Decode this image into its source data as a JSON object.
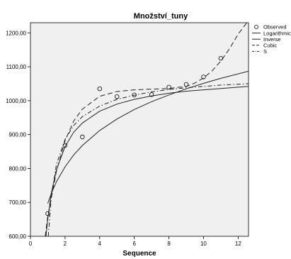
{
  "chart_data": {
    "type": "line",
    "title": "Množství_tuny",
    "xlabel": "Sequence",
    "ylabel": "",
    "xlim": [
      0,
      12.6
    ],
    "ylim": [
      600,
      1230
    ],
    "x_ticks": [
      0,
      2,
      4,
      6,
      8,
      10,
      12
    ],
    "x_tick_labels": [
      "0",
      "2",
      "4",
      "6",
      "8",
      "10",
      "12"
    ],
    "y_ticks": [
      600,
      700,
      800,
      900,
      1000,
      1100,
      1200
    ],
    "y_tick_labels": [
      "600,00",
      "700,00",
      "800,00",
      "900,00",
      "1000,00",
      "1100,00",
      "1200,00"
    ],
    "grid": false,
    "legend_position": "right",
    "plot_background": "#f0f0f0",
    "legend": [
      {
        "label": "Observed",
        "style": "circle"
      },
      {
        "label": "Logarithmic",
        "style": "solid"
      },
      {
        "label": "Inverse",
        "style": "solid"
      },
      {
        "label": "Cubic",
        "style": "dashed"
      },
      {
        "label": "S",
        "style": "dashdot"
      }
    ],
    "observed": {
      "x": [
        1,
        2,
        3,
        4,
        5,
        6,
        7,
        8,
        9,
        10,
        11
      ],
      "y": [
        667,
        868,
        893,
        1035,
        1012,
        1017,
        1018,
        1040,
        1048,
        1070,
        1125
      ]
    },
    "series": [
      {
        "name": "Logarithmic",
        "style": "solid",
        "x": [
          1,
          1.25,
          1.5,
          2,
          2.5,
          3,
          4,
          5,
          6,
          7,
          8,
          9,
          10,
          11,
          12.6
        ],
        "y": [
          697,
          732,
          761,
          805,
          840,
          868,
          912,
          946,
          974,
          997,
          1017,
          1035,
          1051,
          1066,
          1087
        ]
      },
      {
        "name": "Inverse",
        "style": "solid",
        "x": [
          0.9,
          1,
          1.2,
          1.5,
          2,
          2.5,
          3,
          4,
          5,
          6,
          7,
          8,
          9,
          10,
          11,
          12.6
        ],
        "y": [
          600,
          650,
          726,
          796,
          865,
          907,
          934,
          969,
          990,
          1004,
          1014,
          1022,
          1028,
          1032,
          1036,
          1042
        ]
      },
      {
        "name": "Cubic",
        "style": "dashed",
        "x": [
          0.85,
          1,
          1.5,
          2,
          2.5,
          3,
          4,
          5,
          6,
          7,
          8,
          9,
          9.5,
          10,
          10.5,
          11,
          11.5,
          12,
          12.5
        ],
        "y": [
          600,
          658,
          792,
          882,
          940,
          975,
          1013,
          1027,
          1032,
          1034,
          1036,
          1042,
          1052,
          1067,
          1088,
          1117,
          1153,
          1196,
          1230
        ]
      },
      {
        "name": "S",
        "style": "dashdot",
        "x": [
          1.03,
          1.2,
          1.5,
          2,
          2.5,
          3,
          4,
          5,
          6,
          7,
          8,
          9,
          10,
          11,
          12.6
        ],
        "y": [
          600,
          713,
          812,
          886,
          927,
          953,
          984,
          1004,
          1016,
          1026,
          1033,
          1038,
          1042,
          1046,
          1050
        ]
      }
    ]
  }
}
